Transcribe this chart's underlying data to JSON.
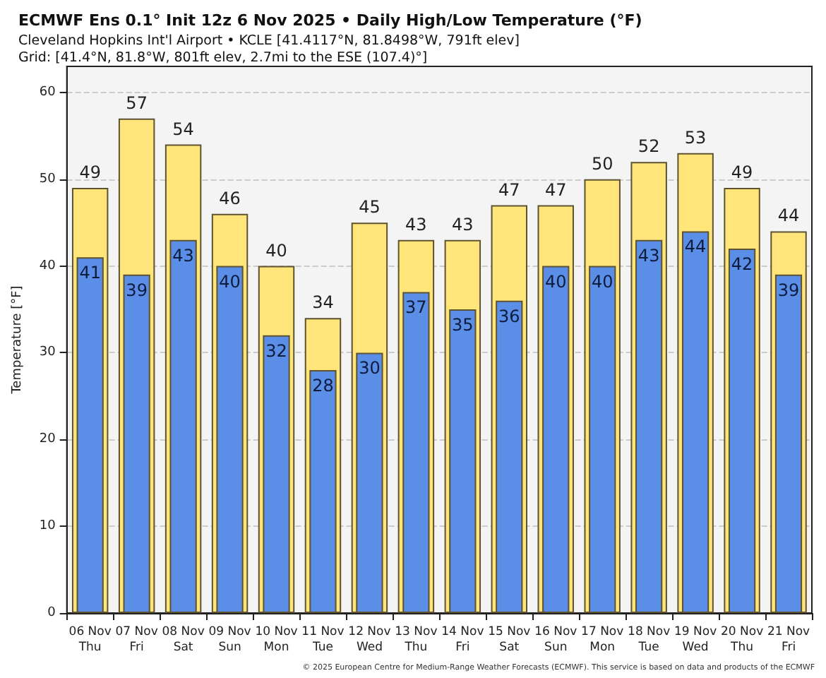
{
  "chart_data": {
    "type": "bar",
    "title": "ECMWF Ens 0.1° Init 12z 6 Nov 2025 • Daily High/Low Temperature (°F)",
    "subtitle": "Cleveland Hopkins Int'l Airport • KCLE [41.4117°N, 81.8498°W, 791ft elev]\nGrid: [41.4°N, 81.8°W, 801ft elev, 2.7mi to the ESE (107.4)°]",
    "ylabel": "Temperature [°F]",
    "categories": [
      "06 Nov\nThu",
      "07 Nov\nFri",
      "08 Nov\nSat",
      "09 Nov\nSun",
      "10 Nov\nMon",
      "11 Nov\nTue",
      "12 Nov\nWed",
      "13 Nov\nThu",
      "14 Nov\nFri",
      "15 Nov\nSat",
      "16 Nov\nSun",
      "17 Nov\nMon",
      "18 Nov\nTue",
      "19 Nov\nWed",
      "20 Nov\nThu",
      "21 Nov\nFri"
    ],
    "series": [
      {
        "color": "#ffe57a",
        "values": [
          49,
          57,
          54,
          46,
          40,
          34,
          45,
          43,
          43,
          47,
          47,
          50,
          52,
          53,
          49,
          44
        ]
      },
      {
        "color": "#5b8ee6",
        "values": [
          41,
          39,
          43,
          40,
          32,
          28,
          30,
          37,
          35,
          36,
          40,
          40,
          43,
          44,
          42,
          39
        ]
      }
    ],
    "ylim": [
      0,
      63
    ],
    "yticks": [
      0,
      10,
      20,
      30,
      40,
      50,
      60
    ],
    "grid": "y",
    "data_labels": true,
    "annotations": [
      "© 2025 European Centre for Medium-Range Weather Forecasts (ECMWF). This service is based on data and products of the ECMWF"
    ]
  }
}
